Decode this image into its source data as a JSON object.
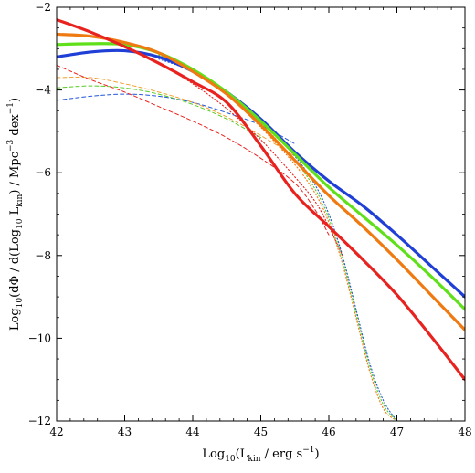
{
  "chart_data": {
    "type": "line",
    "title": "",
    "xlabel": {
      "prefix": "Log",
      "sub1": "10",
      "paren": "(L",
      "sub2": "kin",
      "rest": " / erg s",
      "sup": "−1",
      "close": ")"
    },
    "ylabel": {
      "prefix": "Log",
      "sub1": "10",
      "part2": "(dΦ / d(Log",
      "sub2": "10",
      "part3": " L",
      "sub3": "kin",
      "part4": ") / Mpc",
      "sup1": "−3",
      "part5": " dex",
      "sup2": "−1",
      "close": ")"
    },
    "xlim": [
      42,
      48
    ],
    "ylim": [
      -12,
      -2
    ],
    "xticks": [
      42,
      43,
      44,
      45,
      46,
      47,
      48
    ],
    "xtick_labels": [
      "42",
      "43",
      "44",
      "45",
      "46",
      "47",
      "48"
    ],
    "yticks": [
      -12,
      -10,
      -8,
      -6,
      -4,
      -2
    ],
    "ytick_labels": [
      "−12",
      "−10",
      "−8",
      "−6",
      "−4",
      "−2"
    ],
    "grid": false,
    "series": [
      {
        "color": "#1f3fd6",
        "style": "solid",
        "x": [
          42,
          42.5,
          43,
          43.5,
          44,
          44.5,
          45,
          45.5,
          46,
          46.5,
          47,
          47.5,
          48
        ],
        "y": [
          -3.2,
          -3.08,
          -3.05,
          -3.2,
          -3.55,
          -4.05,
          -4.7,
          -5.5,
          -6.2,
          -6.8,
          -7.5,
          -8.25,
          -9.0
        ]
      },
      {
        "color": "#5fe01a",
        "style": "solid",
        "x": [
          42,
          42.5,
          43,
          43.5,
          44,
          44.5,
          45,
          45.5,
          46,
          46.5,
          47,
          47.5,
          48
        ],
        "y": [
          -2.9,
          -2.88,
          -2.9,
          -3.1,
          -3.5,
          -4.05,
          -4.75,
          -5.55,
          -6.35,
          -7.05,
          -7.75,
          -8.5,
          -9.3
        ]
      },
      {
        "color": "#f07a12",
        "style": "solid",
        "x": [
          42,
          42.5,
          43,
          43.5,
          44,
          44.5,
          45,
          45.5,
          46,
          46.5,
          47,
          47.5,
          48
        ],
        "y": [
          -2.65,
          -2.7,
          -2.85,
          -3.1,
          -3.55,
          -4.1,
          -4.85,
          -5.7,
          -6.55,
          -7.3,
          -8.1,
          -8.95,
          -9.8
        ]
      },
      {
        "color": "#e8231f",
        "style": "solid",
        "x": [
          42,
          42.5,
          43,
          43.5,
          44,
          44.5,
          45,
          45.5,
          46,
          46.5,
          47,
          47.5,
          48
        ],
        "y": [
          -2.3,
          -2.6,
          -2.95,
          -3.35,
          -3.8,
          -4.3,
          -5.35,
          -6.5,
          -7.3,
          -8.1,
          -8.95,
          -9.95,
          -11.0
        ]
      },
      {
        "color": "#2255dd",
        "style": "dashed",
        "x": [
          42,
          42.5,
          43,
          43.5,
          44,
          44.5,
          45,
          45.5
        ],
        "y": [
          -4.25,
          -4.15,
          -4.1,
          -4.15,
          -4.3,
          -4.55,
          -4.85,
          -5.3
        ]
      },
      {
        "color": "#55cc22",
        "style": "dashed",
        "x": [
          42,
          42.5,
          43,
          43.5,
          44,
          44.5,
          45
        ],
        "y": [
          -3.95,
          -3.9,
          -3.95,
          -4.1,
          -4.35,
          -4.7,
          -5.15
        ]
      },
      {
        "color": "#f0a030",
        "style": "dashed",
        "x": [
          42,
          42.5,
          43,
          43.5,
          44,
          44.5,
          45,
          45.5
        ],
        "y": [
          -3.7,
          -3.7,
          -3.85,
          -4.05,
          -4.3,
          -4.65,
          -5.1,
          -5.6
        ]
      },
      {
        "color": "#e8231f",
        "style": "dashed",
        "x": [
          42,
          42.5,
          43,
          43.5,
          44,
          44.5,
          45,
          45.5,
          45.8,
          46
        ],
        "y": [
          -3.4,
          -3.75,
          -4.05,
          -4.4,
          -4.75,
          -5.15,
          -5.65,
          -6.25,
          -6.9,
          -7.5
        ]
      },
      {
        "color": "#2255dd",
        "style": "dotted",
        "x": [
          43.5,
          44,
          44.5,
          45,
          45.5,
          45.8,
          46,
          46.2,
          46.4,
          46.6,
          46.8,
          47
        ],
        "y": [
          -3.25,
          -3.55,
          -4.05,
          -4.75,
          -5.6,
          -6.3,
          -7.0,
          -8.0,
          -9.3,
          -10.6,
          -11.5,
          -12.0
        ]
      },
      {
        "color": "#55cc22",
        "style": "dotted",
        "x": [
          43.5,
          44,
          44.5,
          45,
          45.5,
          45.8,
          46,
          46.2,
          46.4,
          46.6,
          46.8,
          47
        ],
        "y": [
          -3.15,
          -3.5,
          -4.05,
          -4.8,
          -5.7,
          -6.4,
          -7.1,
          -8.1,
          -9.4,
          -10.7,
          -11.6,
          -12.0
        ]
      },
      {
        "color": "#f07a12",
        "style": "dotted",
        "x": [
          43.5,
          44,
          44.5,
          45,
          45.5,
          45.8,
          46,
          46.2,
          46.4,
          46.6,
          46.8,
          47
        ],
        "y": [
          -3.1,
          -3.55,
          -4.1,
          -4.9,
          -5.8,
          -6.5,
          -7.2,
          -8.2,
          -9.5,
          -10.8,
          -11.7,
          -12.0
        ]
      },
      {
        "color": "#e8231f",
        "style": "dotted",
        "x": [
          42.5,
          43,
          43.5,
          44,
          44.5,
          45,
          45.5,
          45.8,
          46,
          46.2
        ],
        "y": [
          -2.6,
          -2.95,
          -3.35,
          -3.85,
          -4.45,
          -5.2,
          -6.1,
          -6.7,
          -7.3,
          -8.0
        ]
      }
    ]
  }
}
